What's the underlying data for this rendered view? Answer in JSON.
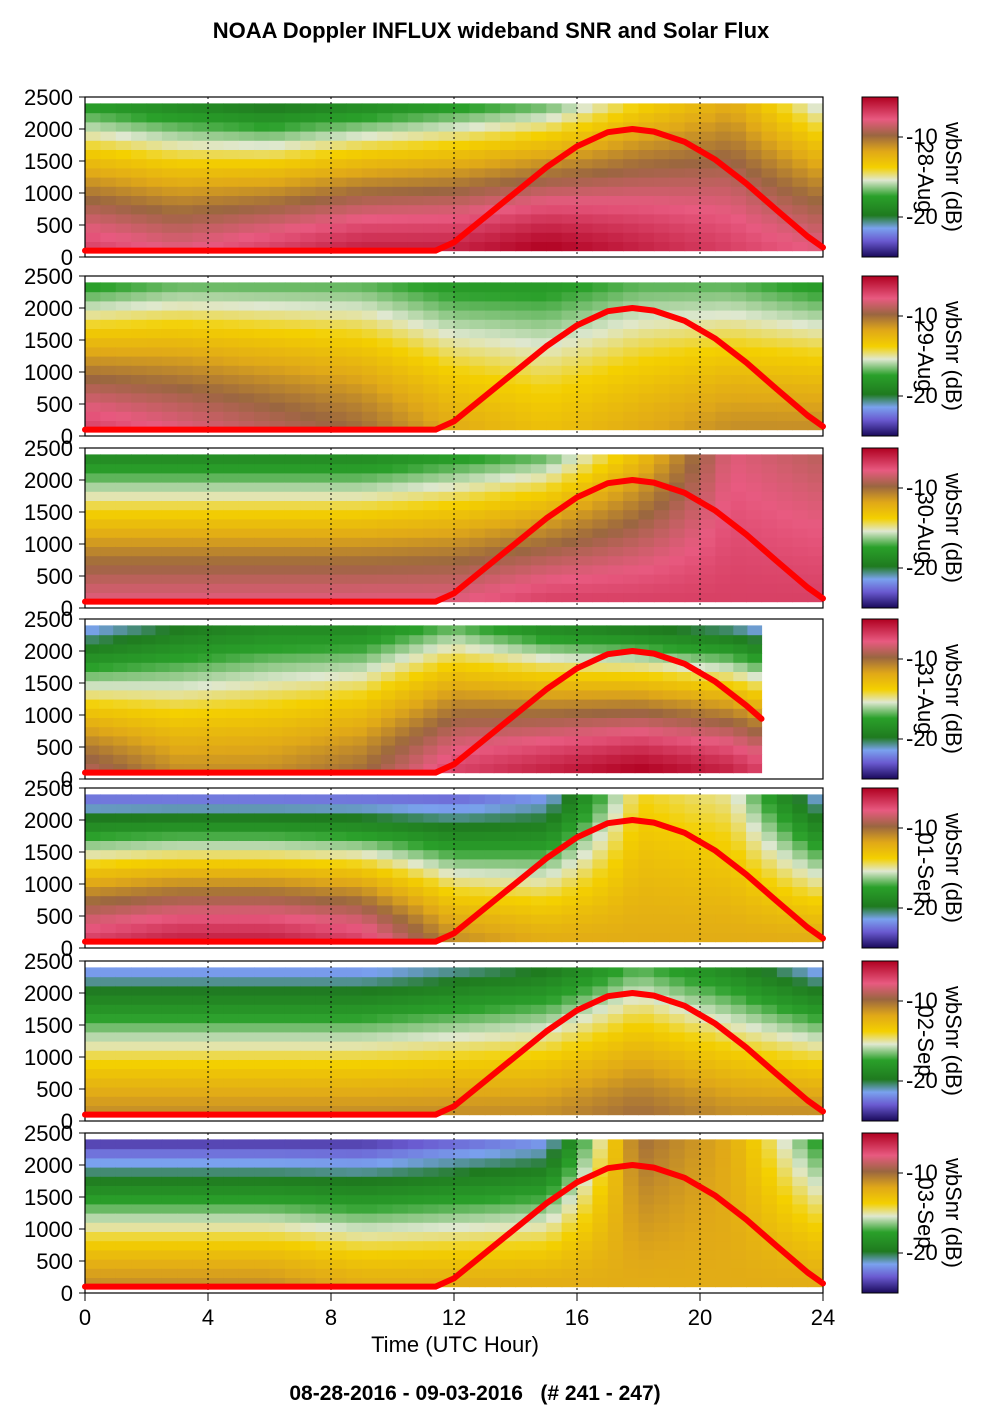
{
  "chart_data": {
    "type": "heatmap",
    "title": "NOAA Doppler INFLUX wideband SNR and Solar Flux",
    "subtitle": "08-28-2016 - 09-03-2016   (# 241 - 247)",
    "xlabel": "Time (UTC Hour)",
    "xlim": [
      0,
      24
    ],
    "x_ticks": [
      "0",
      "4",
      "8",
      "12",
      "16",
      "20",
      "24"
    ],
    "ylim": [
      0,
      2500
    ],
    "y_ticks": [
      "0",
      "500",
      "1000",
      "1500",
      "2000",
      "2500"
    ],
    "colorbar_label": "wbSnr (dB)",
    "colorbar_ticks": [
      "-10",
      "-20"
    ],
    "colorbar_range": [
      -25,
      -5
    ],
    "grid": "dotted vertical at 4,8,12,16,20",
    "solar_curve": {
      "color": "#ff0000",
      "x": [
        0,
        11.4,
        12,
        13,
        14,
        15,
        16,
        17,
        17.8,
        18.5,
        19.5,
        20.5,
        21.5,
        22.5,
        23.5,
        24
      ],
      "y": [
        100,
        100,
        230,
        620,
        1010,
        1400,
        1730,
        1950,
        2000,
        1960,
        1800,
        1520,
        1150,
        730,
        320,
        150
      ]
    },
    "panels": [
      {
        "label": "28-Aug",
        "x_end": 24,
        "x": [
          0,
          3,
          6,
          9,
          12,
          15,
          18,
          21,
          24
        ],
        "snr_near": [
          -7,
          -8,
          -7,
          -6,
          -6,
          -5,
          -6,
          -7,
          -8
        ],
        "snr_far": [
          -18,
          -19,
          -20,
          -19,
          -18,
          -17,
          -14,
          -12,
          -16
        ]
      },
      {
        "label": "29-Aug",
        "x_end": 24,
        "x": [
          0,
          3,
          6,
          9,
          12,
          15,
          18,
          21,
          24
        ],
        "snr_near": [
          -7,
          -8,
          -9,
          -10,
          -12,
          -13,
          -12,
          -11,
          -11
        ],
        "snr_far": [
          -18,
          -17,
          -17,
          -17,
          -18,
          -18,
          -17,
          -17,
          -18
        ]
      },
      {
        "label": "30-Aug",
        "x_end": 24,
        "x": [
          0,
          3,
          6,
          9,
          12,
          15,
          18,
          21,
          24
        ],
        "snr_near": [
          -8,
          -8,
          -8,
          -8,
          -8,
          -7,
          -7,
          -7,
          -7
        ],
        "snr_far": [
          -19,
          -19,
          -19,
          -19,
          -18,
          -17,
          -13,
          -8,
          -9
        ]
      },
      {
        "label": "31-Aug",
        "x_end": 22,
        "x": [
          0,
          3,
          6,
          9,
          12,
          15,
          18,
          21,
          22
        ],
        "snr_near": [
          -9,
          -11,
          -11,
          -10,
          -7,
          -6,
          -5,
          -6,
          -7
        ],
        "snr_far": [
          -22,
          -20,
          -19,
          -19,
          -17,
          -19,
          -20,
          -21,
          -22
        ]
      },
      {
        "label": "01-Sep",
        "x_end": 24,
        "x": [
          0,
          3,
          6,
          9,
          12,
          15,
          18,
          21,
          24
        ],
        "snr_near": [
          -7,
          -6,
          -6,
          -7,
          -11,
          -12,
          -12,
          -12,
          -12
        ],
        "snr_far": [
          -23,
          -23,
          -23,
          -23,
          -23,
          -22,
          -14,
          -15,
          -22
        ]
      },
      {
        "label": "02-Sep",
        "x_end": 24,
        "x": [
          0,
          3,
          6,
          9,
          12,
          15,
          18,
          21,
          24
        ],
        "snr_near": [
          -11,
          -11,
          -11,
          -11,
          -11,
          -11,
          -10,
          -11,
          -11
        ],
        "snr_far": [
          -22,
          -22,
          -22,
          -22,
          -21,
          -20,
          -17,
          -19,
          -22
        ]
      },
      {
        "label": "03-Sep",
        "x_end": 24,
        "x": [
          0,
          3,
          6,
          9,
          12,
          15,
          18,
          21,
          24
        ],
        "snr_near": [
          -11,
          -11,
          -11,
          -12,
          -12,
          -12,
          -12,
          -12,
          -12
        ],
        "snr_far": [
          -24,
          -24,
          -24,
          -24,
          -23,
          -22,
          -10,
          -12,
          -18
        ]
      }
    ]
  }
}
